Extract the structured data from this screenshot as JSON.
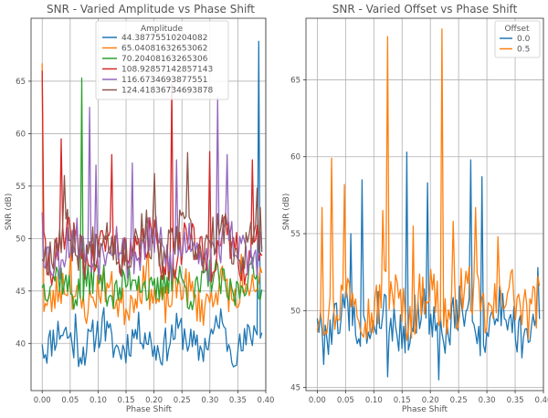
{
  "colors": {
    "blue": "#1f77b4",
    "orange": "#ff7f0e",
    "green": "#2ca02c",
    "red": "#d62728",
    "purple": "#9467bd",
    "brown": "#8c564b"
  },
  "chart_data": [
    {
      "type": "line",
      "title": "SNR - Varied Amplitude vs Phase Shift",
      "xlabel": "Phase Shift",
      "ylabel": "SNR (dB)",
      "xlim": [
        -0.02,
        0.4
      ],
      "ylim": [
        35.5,
        71.0
      ],
      "xticks": [
        "0.00",
        "0.05",
        "0.10",
        "0.15",
        "0.20",
        "0.25",
        "0.30",
        "0.35",
        "0.40"
      ],
      "xtick_values": [
        0.0,
        0.05,
        0.1,
        0.15,
        0.2,
        0.25,
        0.3,
        0.35,
        0.4
      ],
      "yticks": [
        "40",
        "45",
        "50",
        "55",
        "60",
        "65"
      ],
      "ytick_values": [
        40,
        45,
        50,
        55,
        60,
        65
      ],
      "grid": true,
      "legend": {
        "title": "Amplitude",
        "placement": "top-center"
      },
      "x_domain": [
        0.0,
        0.393
      ],
      "series": [
        {
          "name": "44.38775510204082",
          "color": "#1f77b4",
          "base": 40.3,
          "amp": 1.6,
          "start": 39.9,
          "spikes": [
            [
              0.387,
              68.8
            ],
            [
              0.06,
              42.8
            ],
            [
              0.11,
              43.4
            ],
            [
              0.32,
              43.3
            ]
          ],
          "seed": 11
        },
        {
          "name": "65.04081632653062",
          "color": "#ff7f0e",
          "base": 44.6,
          "amp": 1.8,
          "start": 66.7,
          "spikes": [
            [
              0.05,
              48.8
            ],
            [
              0.19,
              49.0
            ],
            [
              0.355,
              48.5
            ]
          ],
          "seed": 23
        },
        {
          "name": "70.20408163265306",
          "color": "#2ca02c",
          "base": 45.6,
          "amp": 1.6,
          "start": 45.3,
          "spikes": [
            [
              0.07,
              65.3
            ],
            [
              0.23,
              48.5
            ]
          ],
          "seed": 37
        },
        {
          "name": "108.92857142857143",
          "color": "#d62728",
          "base": 48.9,
          "amp": 2.0,
          "start": 66.0,
          "spikes": [
            [
              0.035,
              59.5
            ],
            [
              0.124,
              58.0
            ],
            [
              0.232,
              64.7
            ],
            [
              0.3,
              58.3
            ],
            [
              0.375,
              57.5
            ]
          ],
          "seed": 41
        },
        {
          "name": "116.6734693877551",
          "color": "#9467bd",
          "base": 49.0,
          "amp": 2.0,
          "start": 52.5,
          "spikes": [
            [
              0.085,
              62.5
            ],
            [
              0.16,
              57.2
            ],
            [
              0.24,
              57.5
            ],
            [
              0.314,
              63.5
            ],
            [
              0.33,
              58.0
            ],
            [
              0.095,
              57.0
            ]
          ],
          "seed": 53
        },
        {
          "name": "124.41836734693878",
          "color": "#8c564b",
          "base": 49.6,
          "amp": 2.0,
          "start": 48.0,
          "spikes": [
            [
              0.04,
              56.0
            ],
            [
              0.2,
              56.2
            ],
            [
              0.26,
              58.2
            ],
            [
              0.385,
              54.8
            ]
          ],
          "seed": 67
        }
      ]
    },
    {
      "type": "line",
      "title": "SNR - Varied Offset vs Phase Shift",
      "xlabel": "Phase Shift",
      "ylabel": "SNR (dB)",
      "xlim": [
        -0.02,
        0.4
      ],
      "ylim": [
        44.8,
        69.0
      ],
      "xticks": [
        "0.00",
        "0.05",
        "0.10",
        "0.15",
        "0.20",
        "0.25",
        "0.30",
        "0.35",
        "0.40"
      ],
      "xtick_values": [
        0.0,
        0.05,
        0.1,
        0.15,
        0.2,
        0.25,
        0.3,
        0.35,
        0.4
      ],
      "yticks": [
        "45",
        "50",
        "55",
        "60",
        "65"
      ],
      "ytick_values": [
        45,
        50,
        55,
        60,
        65
      ],
      "grid": true,
      "legend": {
        "title": "Offset",
        "placement": "top-right"
      },
      "x_domain": [
        0.0,
        0.393
      ],
      "series": [
        {
          "name": "0.0",
          "color": "#1f77b4",
          "base": 49.3,
          "amp": 1.4,
          "start": 49.5,
          "spikes": [
            [
              0.078,
              58.5
            ],
            [
              0.158,
              60.3
            ],
            [
              0.196,
              58.3
            ],
            [
              0.272,
              59.8
            ],
            [
              0.06,
              55.0
            ],
            [
              0.292,
              58.7
            ],
            [
              0.39,
              52.8
            ],
            [
              0.215,
              45.5
            ],
            [
              0.124,
              45.7
            ],
            [
              0.01,
              46.5
            ]
          ],
          "seed": 79
        },
        {
          "name": "0.5",
          "color": "#ff7f0e",
          "base": 50.6,
          "amp": 1.6,
          "start": 48.6,
          "spikes": [
            [
              0.124,
              67.8
            ],
            [
              0.22,
              68.3
            ],
            [
              0.026,
              59.9
            ],
            [
              0.048,
              58.2
            ],
            [
              0.008,
              56.7
            ],
            [
              0.28,
              56.7
            ],
            [
              0.115,
              56.5
            ],
            [
              0.17,
              55.5
            ],
            [
              0.24,
              55.8
            ],
            [
              0.32,
              54.8
            ]
          ],
          "seed": 97
        }
      ]
    }
  ]
}
